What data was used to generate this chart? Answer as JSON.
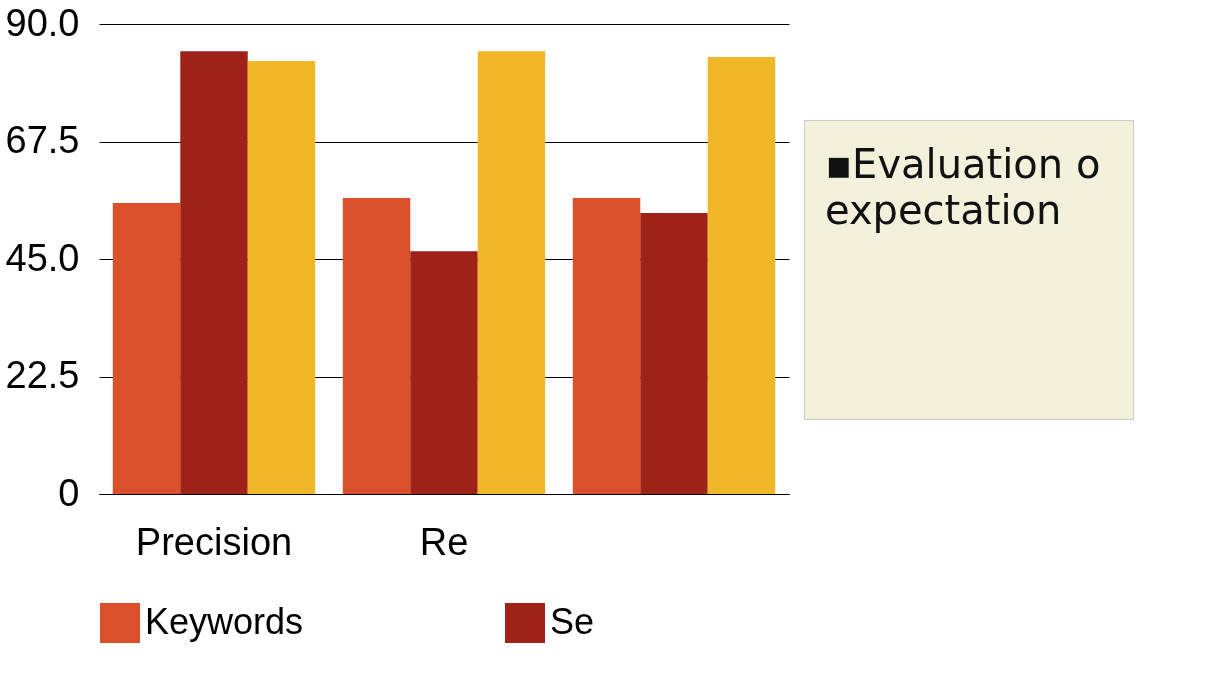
{
  "chart_data": {
    "type": "bar",
    "categories": [
      "Precision",
      "Re",
      null
    ],
    "series": [
      {
        "name": "Keywords",
        "color": "#d9502a",
        "values": [
          55.7,
          56.7,
          56.7
        ]
      },
      {
        "name": "Se",
        "color": "#9e2218",
        "values": [
          84.8,
          46.5,
          53.8
        ]
      },
      {
        "color": "#f0b828",
        "values": [
          82.9,
          84.8,
          83.7
        ]
      }
    ],
    "ylim": [
      0,
      90
    ],
    "yticks": [
      0,
      {
        "value": 22.5,
        "label": "22.5"
      },
      {
        "value": 45,
        "label": "45.0"
      },
      {
        "value": 67.5,
        "label": "67.5"
      },
      {
        "value": 90,
        "label": "90.0"
      }
    ],
    "grid": "y",
    "legend": "bottom",
    "annotations": [
      "▪Evaluation o",
      "expectation"
    ]
  }
}
